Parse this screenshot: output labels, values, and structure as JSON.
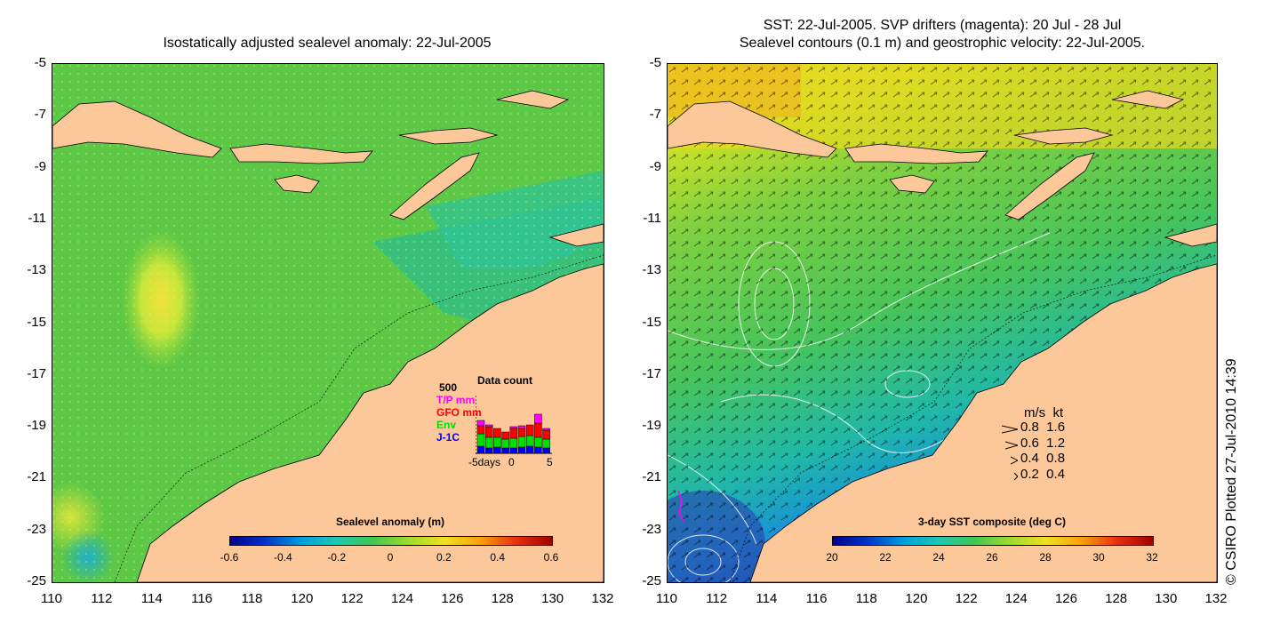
{
  "left_panel": {
    "title": "Isostatically adjusted sealevel anomaly: 22-Jul-2005",
    "y_ticks": [
      "-5",
      "-7",
      "-9",
      "-11",
      "-13",
      "-15",
      "-17",
      "-19",
      "-21",
      "-23",
      "-25"
    ],
    "x_ticks": [
      "110",
      "112",
      "114",
      "116",
      "118",
      "120",
      "122",
      "124",
      "126",
      "128",
      "130",
      "132"
    ],
    "colorbar": {
      "title": "Sealevel anomaly (m)",
      "ticks": [
        "-0.6",
        "-0.4",
        "-0.2",
        "0",
        "0.2",
        "0.4",
        "0.6"
      ]
    },
    "data_count": {
      "title": "Data count",
      "max_label": "500",
      "series": [
        {
          "name": "T/P mm",
          "color": "#ff00ff"
        },
        {
          "name": "GFO mm",
          "color": "#ff0000"
        },
        {
          "name": "Env",
          "color": "#00e000"
        },
        {
          "name": "J-1C",
          "color": "#0000ff"
        }
      ],
      "x_labels": [
        "-5days",
        "0",
        "5"
      ]
    }
  },
  "right_panel": {
    "title_line1": "SST: 22-Jul-2005. SVP drifters (magenta): 20 Jul - 28 Jul",
    "title_line2": "Sealevel contours (0.1 m) and geostrophic velocity: 22-Jul-2005.",
    "y_ticks": [
      "-5",
      "-7",
      "-9",
      "-11",
      "-13",
      "-15",
      "-17",
      "-19",
      "-21",
      "-23",
      "-25"
    ],
    "x_ticks": [
      "110",
      "112",
      "114",
      "116",
      "118",
      "120",
      "122",
      "124",
      "126",
      "128",
      "130",
      "132"
    ],
    "colorbar": {
      "title": "3-day SST composite (deg C)",
      "ticks": [
        "20",
        "22",
        "24",
        "26",
        "28",
        "30",
        "32"
      ]
    },
    "velocity_legend": {
      "header": "m/s  kt",
      "rows": [
        "0.8  1.6",
        "0.6  1.2",
        "0.4  0.8",
        "0.2  0.4"
      ]
    }
  },
  "credit": "© CSIRO Plotted 27-Jul-2010 14:39"
}
